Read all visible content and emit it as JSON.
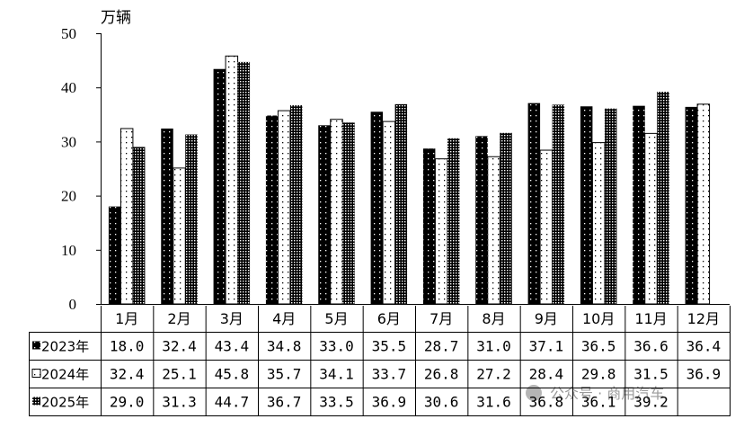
{
  "chart_data": {
    "type": "table",
    "chart_kind": "bar",
    "ylabel": "万辆",
    "ylim": [
      0,
      50
    ],
    "yticks": [
      0,
      10,
      20,
      30,
      40,
      50
    ],
    "grid": false,
    "categories": [
      "1月",
      "2月",
      "3月",
      "4月",
      "5月",
      "6月",
      "7月",
      "8月",
      "9月",
      "10月",
      "11月",
      "12月"
    ],
    "series": [
      {
        "name": "2023年",
        "pattern": "black-with-white-dots",
        "values": [
          18.0,
          32.4,
          43.4,
          34.8,
          33.0,
          35.5,
          28.7,
          31.0,
          37.1,
          36.5,
          36.6,
          36.4
        ],
        "labels": [
          "18.0",
          "32.4",
          "43.4",
          "34.8",
          "33.0",
          "35.5",
          "28.7",
          "31.0",
          "37.1",
          "36.5",
          "36.6",
          "36.4"
        ]
      },
      {
        "name": "2024年",
        "pattern": "white-with-black-dots",
        "values": [
          32.4,
          25.1,
          45.8,
          35.7,
          34.1,
          33.7,
          26.8,
          27.2,
          28.4,
          29.8,
          31.5,
          36.9
        ],
        "labels": [
          "32.4",
          "25.1",
          "45.8",
          "35.7",
          "34.1",
          "33.7",
          "26.8",
          "27.2",
          "28.4",
          "29.8",
          "31.5",
          "36.9"
        ]
      },
      {
        "name": "2025年",
        "pattern": "dense-checker",
        "values": [
          29.0,
          31.3,
          44.7,
          36.7,
          33.5,
          36.9,
          30.6,
          31.6,
          36.8,
          36.1,
          39.2,
          null
        ],
        "labels": [
          "29.0",
          "31.3",
          "44.7",
          "36.7",
          "33.5",
          "36.9",
          "30.6",
          "31.6",
          "36.8",
          "36.1",
          "39.2",
          ""
        ]
      }
    ]
  },
  "watermark": "公众号 · 商用汽车",
  "colors": {
    "ink": "#000000",
    "paper": "#ffffff",
    "watermark": "#9a9a9a"
  }
}
